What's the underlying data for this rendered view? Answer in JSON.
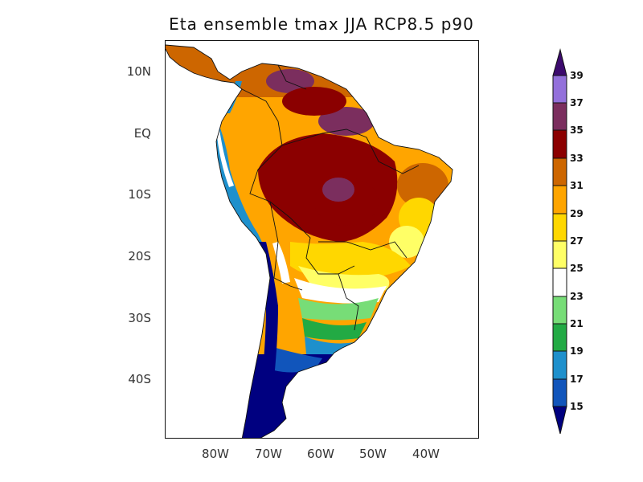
{
  "title": "Eta ensemble tmax JJA RCP8.5 p90",
  "lat_labels": [
    "10N",
    "EQ",
    "10S",
    "20S",
    "30S",
    "40S"
  ],
  "lon_labels": [
    "80W",
    "70W",
    "60W",
    "50W",
    "40W"
  ],
  "colorbar": {
    "levels": [
      "39",
      "37",
      "35",
      "33",
      "31",
      "29",
      "27",
      "25",
      "23",
      "21",
      "19",
      "17",
      "15"
    ],
    "colors": {
      "above_39": "#3c0a6e",
      "37_39": "#9370db",
      "35_37": "#7b2e5e",
      "33_35": "#8b0000",
      "31_33": "#cd6600",
      "29_31": "#ffa500",
      "27_29": "#ffd700",
      "25_27": "#ffff66",
      "23_25": "#ffffff",
      "21_23": "#77dd77",
      "19_21": "#22aa44",
      "17_19": "#1e90cc",
      "15_17": "#1155bb",
      "below_15": "#000080"
    }
  }
}
